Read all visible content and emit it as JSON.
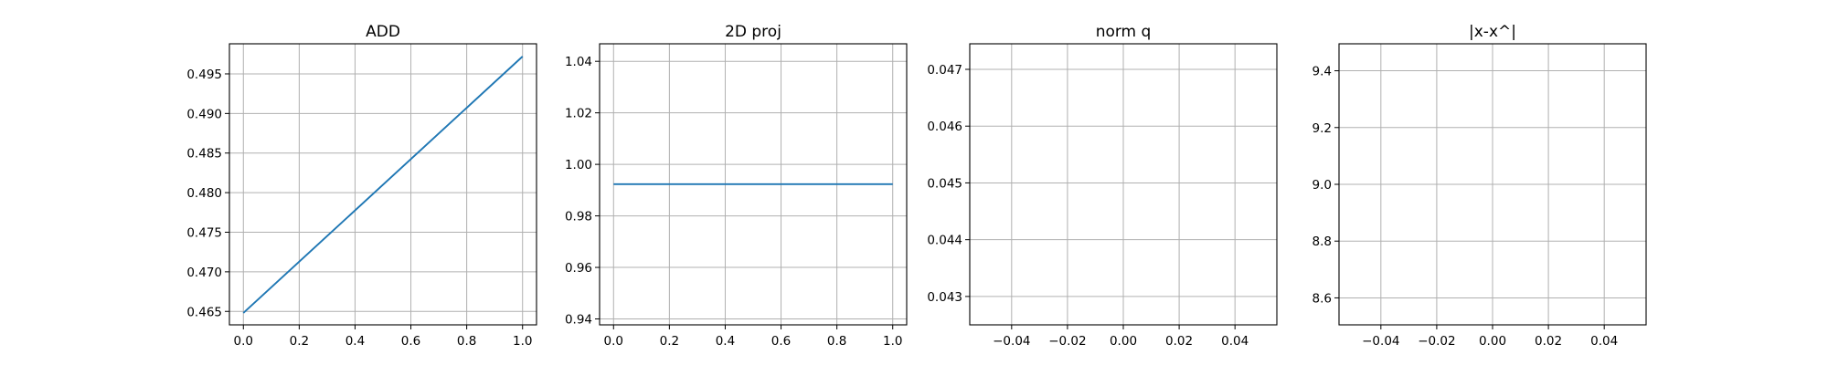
{
  "chart_data": [
    {
      "type": "line",
      "title": "ADD",
      "xlabel": "",
      "ylabel": "",
      "xlim": [
        -0.05,
        1.05
      ],
      "ylim": [
        0.4633,
        0.4988
      ],
      "grid": true,
      "x_ticks": [
        "0.0",
        "0.2",
        "0.4",
        "0.6",
        "0.8",
        "1.0"
      ],
      "y_ticks": [
        "0.465",
        "0.470",
        "0.475",
        "0.480",
        "0.485",
        "0.490",
        "0.495"
      ],
      "series": [
        {
          "x": [
            0.0,
            1.0
          ],
          "y": [
            0.4648,
            0.4972
          ],
          "color": "#1f77b4"
        }
      ]
    },
    {
      "type": "line",
      "title": "2D proj",
      "xlabel": "",
      "ylabel": "",
      "xlim": [
        -0.05,
        1.05
      ],
      "ylim": [
        0.9377,
        1.0468
      ],
      "grid": true,
      "x_ticks": [
        "0.0",
        "0.2",
        "0.4",
        "0.6",
        "0.8",
        "1.0"
      ],
      "y_ticks": [
        "0.94",
        "0.96",
        "0.98",
        "1.00",
        "1.02",
        "1.04"
      ],
      "series": [
        {
          "x": [
            0.0,
            1.0
          ],
          "y": [
            0.9923,
            0.9923
          ],
          "color": "#1f77b4"
        }
      ]
    },
    {
      "type": "line",
      "title": "norm q",
      "xlabel": "",
      "ylabel": "",
      "xlim": [
        -0.055,
        0.055
      ],
      "ylim": [
        0.0425,
        0.04745
      ],
      "grid": true,
      "x_ticks": [
        "−0.04",
        "−0.02",
        "0.00",
        "0.02",
        "0.04"
      ],
      "y_ticks": [
        "0.043",
        "0.044",
        "0.045",
        "0.046",
        "0.047"
      ],
      "series": []
    },
    {
      "type": "line",
      "title": "|x-x^|",
      "xlabel": "",
      "ylabel": "",
      "xlim": [
        -0.055,
        0.055
      ],
      "ylim": [
        8.505,
        9.495
      ],
      "grid": true,
      "x_ticks": [
        "−0.04",
        "−0.02",
        "0.00",
        "0.02",
        "0.04"
      ],
      "y_ticks": [
        "8.6",
        "8.8",
        "9.0",
        "9.2",
        "9.4"
      ],
      "series": []
    }
  ]
}
